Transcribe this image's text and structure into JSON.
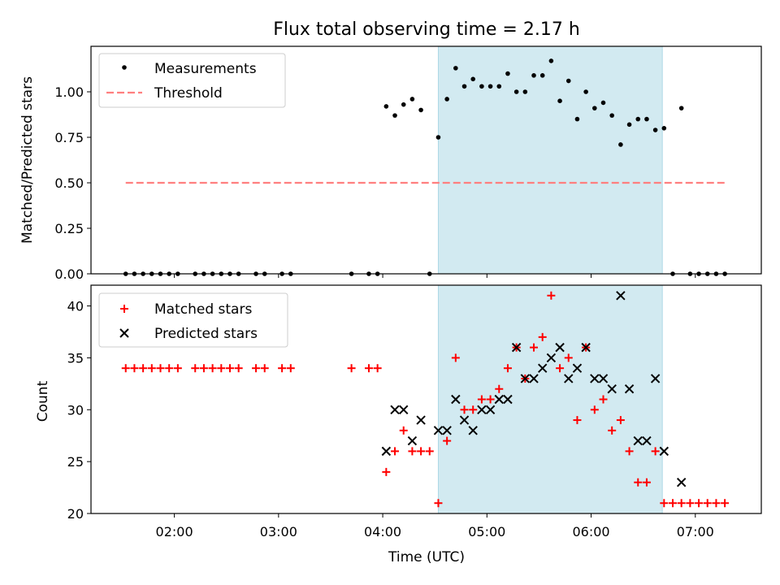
{
  "colors": {
    "band": "#add8e6",
    "measurement": "#000000",
    "threshold": "#ff7f7f",
    "matched": "#ff0000",
    "predicted": "#000000"
  },
  "chart_data": [
    {
      "type": "scatter",
      "title": "Flux total observing time = 2.17 h",
      "xlabel": "",
      "ylabel": "Matched/Predicted stars",
      "xlim": [
        "01:12",
        "07:38"
      ],
      "ylim": [
        0,
        1.25
      ],
      "yticks": [
        0.0,
        0.25,
        0.5,
        0.75,
        1.0
      ],
      "ytick_labels": [
        "0.00",
        "0.25",
        "0.50",
        "0.75",
        "1.00"
      ],
      "shaded_band": [
        "04:32",
        "06:41"
      ],
      "legend": {
        "position": "top-left",
        "entries": [
          "Measurements",
          "Threshold"
        ]
      },
      "threshold": {
        "name": "Threshold",
        "y": 0.5,
        "x": [
          "01:32",
          "07:17"
        ]
      },
      "series": [
        {
          "name": "Measurements",
          "x": [
            "01:32",
            "01:37",
            "01:42",
            "01:47",
            "01:52",
            "01:57",
            "02:02",
            "02:12",
            "02:17",
            "02:22",
            "02:27",
            "02:32",
            "02:37",
            "02:47",
            "02:52",
            "03:02",
            "03:07",
            "03:42",
            "03:52",
            "03:57",
            "04:02",
            "04:07",
            "04:12",
            "04:17",
            "04:22",
            "04:27",
            "04:32",
            "04:37",
            "04:42",
            "04:47",
            "04:52",
            "04:57",
            "05:02",
            "05:07",
            "05:12",
            "05:17",
            "05:22",
            "05:27",
            "05:32",
            "05:37",
            "05:42",
            "05:47",
            "05:52",
            "05:57",
            "06:02",
            "06:07",
            "06:12",
            "06:17",
            "06:22",
            "06:27",
            "06:32",
            "06:37",
            "06:42",
            "06:47",
            "06:52",
            "06:57",
            "07:02",
            "07:07",
            "07:12",
            "07:17"
          ],
          "y": [
            0,
            0,
            0,
            0,
            0,
            0,
            0,
            0,
            0,
            0,
            0,
            0,
            0,
            0,
            0,
            0,
            0,
            0,
            0,
            0,
            0.92,
            0.87,
            0.93,
            0.96,
            0.9,
            0,
            0.75,
            0.96,
            1.13,
            1.03,
            1.07,
            1.03,
            1.03,
            1.03,
            1.1,
            1.0,
            1.0,
            1.09,
            1.09,
            1.17,
            0.95,
            1.06,
            0.85,
            1.0,
            0.91,
            0.94,
            0.87,
            0.71,
            0.82,
            0.85,
            0.85,
            0.79,
            0.8,
            0,
            0.91,
            0,
            0,
            0,
            0,
            0
          ]
        }
      ]
    },
    {
      "type": "scatter",
      "title": "",
      "xlabel": "Time (UTC)",
      "ylabel": "Count",
      "xlim": [
        "01:12",
        "07:38"
      ],
      "ylim": [
        20,
        42
      ],
      "yticks": [
        20,
        25,
        30,
        35,
        40
      ],
      "xticks": [
        "02:00",
        "03:00",
        "04:00",
        "05:00",
        "06:00",
        "07:00"
      ],
      "shaded_band": [
        "04:32",
        "06:41"
      ],
      "legend": {
        "position": "top-left",
        "entries": [
          "Matched stars",
          "Predicted stars"
        ]
      },
      "series": [
        {
          "name": "Matched stars",
          "x": [
            "01:32",
            "01:37",
            "01:42",
            "01:47",
            "01:52",
            "01:57",
            "02:02",
            "02:12",
            "02:17",
            "02:22",
            "02:27",
            "02:32",
            "02:37",
            "02:47",
            "02:52",
            "03:02",
            "03:07",
            "03:42",
            "03:52",
            "03:57",
            "04:02",
            "04:07",
            "04:12",
            "04:17",
            "04:22",
            "04:27",
            "04:32",
            "04:37",
            "04:42",
            "04:47",
            "04:52",
            "04:57",
            "05:02",
            "05:07",
            "05:12",
            "05:17",
            "05:22",
            "05:27",
            "05:32",
            "05:37",
            "05:42",
            "05:47",
            "05:52",
            "05:57",
            "06:02",
            "06:07",
            "06:12",
            "06:17",
            "06:22",
            "06:27",
            "06:32",
            "06:37",
            "06:42",
            "06:47",
            "06:52",
            "06:57",
            "07:02",
            "07:07",
            "07:12",
            "07:17"
          ],
          "y": [
            34,
            34,
            34,
            34,
            34,
            34,
            34,
            34,
            34,
            34,
            34,
            34,
            34,
            34,
            34,
            34,
            34,
            34,
            34,
            34,
            24,
            26,
            28,
            26,
            26,
            26,
            21,
            27,
            35,
            30,
            30,
            31,
            31,
            32,
            34,
            36,
            33,
            36,
            37,
            41,
            34,
            35,
            29,
            36,
            30,
            31,
            28,
            29,
            26,
            23,
            23,
            26,
            21,
            21,
            21,
            21,
            21,
            21,
            21,
            21
          ]
        },
        {
          "name": "Predicted stars",
          "x": [
            "04:02",
            "04:07",
            "04:12",
            "04:17",
            "04:22",
            "04:32",
            "04:37",
            "04:42",
            "04:47",
            "04:52",
            "04:57",
            "05:02",
            "05:07",
            "05:12",
            "05:17",
            "05:22",
            "05:27",
            "05:32",
            "05:37",
            "05:42",
            "05:47",
            "05:52",
            "05:57",
            "06:02",
            "06:07",
            "06:12",
            "06:17",
            "06:22",
            "06:27",
            "06:32",
            "06:37",
            "06:42",
            "06:52"
          ],
          "y": [
            26,
            30,
            30,
            27,
            29,
            28,
            28,
            31,
            29,
            28,
            30,
            30,
            31,
            31,
            36,
            33,
            33,
            34,
            35,
            36,
            33,
            34,
            36,
            33,
            33,
            32,
            41,
            32,
            27,
            27,
            33,
            26,
            23
          ]
        }
      ]
    }
  ]
}
